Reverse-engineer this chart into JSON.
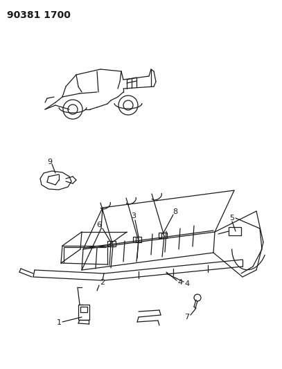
{
  "title": "90381 1700",
  "bg_color": "#ffffff",
  "line_color": "#1a1a1a",
  "title_fontsize": 10,
  "label_fontsize": 7.5,
  "figsize": [
    4.07,
    5.33
  ],
  "dpi": 100
}
